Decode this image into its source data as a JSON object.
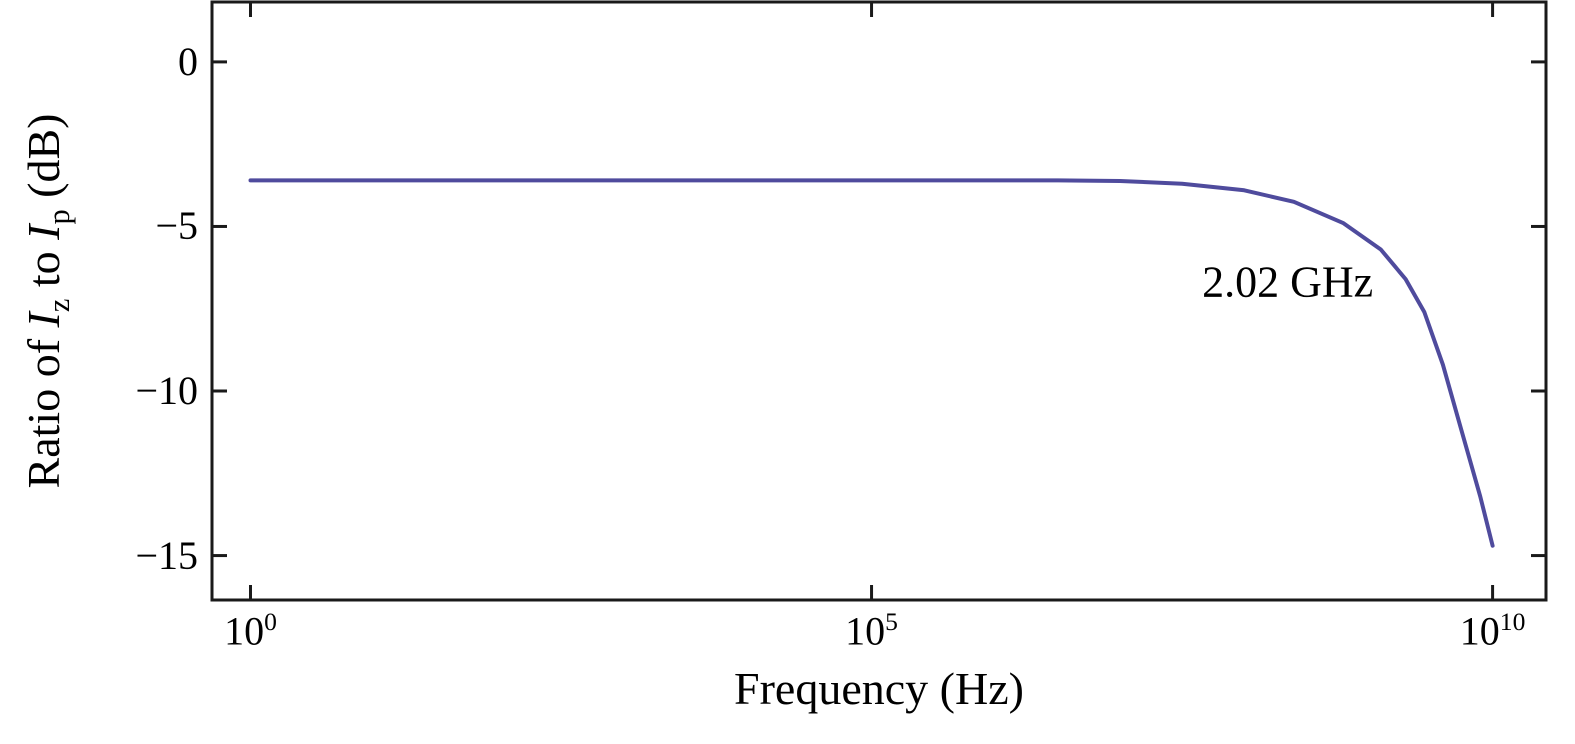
{
  "figure": {
    "background": "#ffffff",
    "axis_color": "#1a1a1a"
  },
  "chart_data": {
    "type": "line",
    "title": "",
    "xlabel": "Frequency (Hz)",
    "ylabel": "Ratio of I_z to I_p (dB)",
    "ylabel_parts": {
      "prefix": "Ratio of ",
      "var1": "I",
      "sub1": "z",
      "mid": " to ",
      "var2": "I",
      "sub2": "p",
      "suffix": " (dB)"
    },
    "x_scale": "log",
    "xlim_log10": [
      -0.31,
      10.43
    ],
    "ylim": [
      -16.35,
      1.82
    ],
    "grid": false,
    "legend": "none",
    "xticks": [
      {
        "base": "10",
        "exp": "0",
        "value_log10": 0
      },
      {
        "base": "10",
        "exp": "5",
        "value_log10": 5
      },
      {
        "base": "10",
        "exp": "10",
        "value_log10": 10
      }
    ],
    "yticks": [
      {
        "label": "0",
        "value": 0
      },
      {
        "label": "−5",
        "value": -5
      },
      {
        "label": "−10",
        "value": -10
      },
      {
        "label": "−15",
        "value": -15
      }
    ],
    "series": [
      {
        "name": "ratio-of-Iz-to-Ip",
        "color": "#4f4b9d",
        "x_log10": [
          0,
          1,
          2,
          3,
          4,
          5,
          6,
          6.5,
          7,
          7.5,
          8,
          8.4,
          8.8,
          9.1,
          9.3,
          9.45,
          9.6,
          9.75,
          9.9,
          10
        ],
        "y_db": [
          -3.6,
          -3.6,
          -3.6,
          -3.6,
          -3.6,
          -3.6,
          -3.6,
          -3.6,
          -3.62,
          -3.7,
          -3.9,
          -4.25,
          -4.9,
          -5.7,
          -6.6,
          -7.6,
          -9.2,
          -11.2,
          -13.2,
          -14.7
        ]
      }
    ],
    "annotations": [
      {
        "text": "2.02 GHz",
        "x_log10": 8.35,
        "y_db": -6.7
      }
    ]
  }
}
